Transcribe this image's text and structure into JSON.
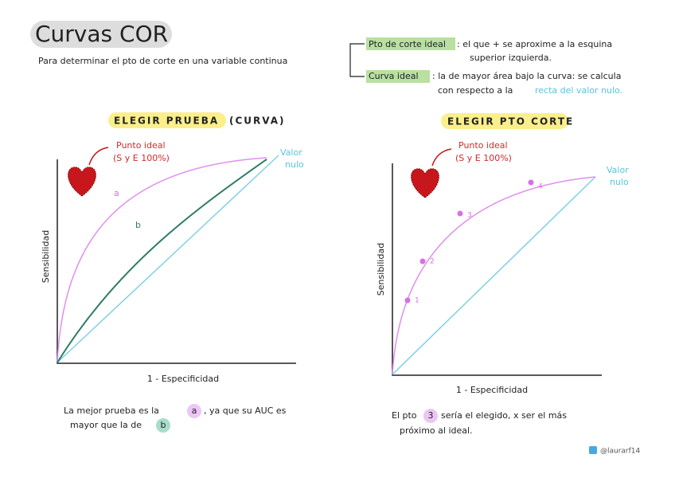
{
  "header": {
    "title": "Curvas COR",
    "intro": "Para determinar el pto de corte en una variable continua"
  },
  "notes": [
    {
      "term": "Pto de corte ideal",
      "lines": [
        ": el que + se aproxime a la esquina",
        "superior izquierda."
      ]
    },
    {
      "term": "Curva ideal",
      "lines": [
        ": la de mayor área bajo la curva: se calcula",
        "con respecto a la"
      ],
      "link": "recta del valor nulo."
    }
  ],
  "left_panel": {
    "heading": "ELEGIR PRUEBA",
    "heading_note": "(CURVA)",
    "ideal_label": "Punto ideal",
    "ideal_note": "(S y E 100%)",
    "null_label": [
      "Valor",
      "nulo"
    ],
    "curve_a": "a",
    "curve_b": "b",
    "y_label": "Sensibilidad",
    "x_label": "1 - Especificidad",
    "conclusion": {
      "line1": "La mejor prueba es la",
      "mark1": "a",
      "line1_end": ", ya que su AUC es",
      "line2": "mayor que la de",
      "mark2": "b"
    }
  },
  "right_panel": {
    "heading": "ELEGIR PTO CORTE",
    "ideal_label": "Punto ideal",
    "ideal_note": "(S y E 100%)",
    "null_label": [
      "Valor",
      "nulo"
    ],
    "points": [
      "1",
      "2",
      "3",
      "4"
    ],
    "y_label": "Sensibilidad",
    "x_label": "1 - Especificidad",
    "conclusion": {
      "line1": "El pto",
      "mark": "3",
      "line1_end": "sería el elegido, x ser el más",
      "line2": "próximo al ideal."
    }
  },
  "footer": {
    "handle": "@laurarf14"
  }
}
